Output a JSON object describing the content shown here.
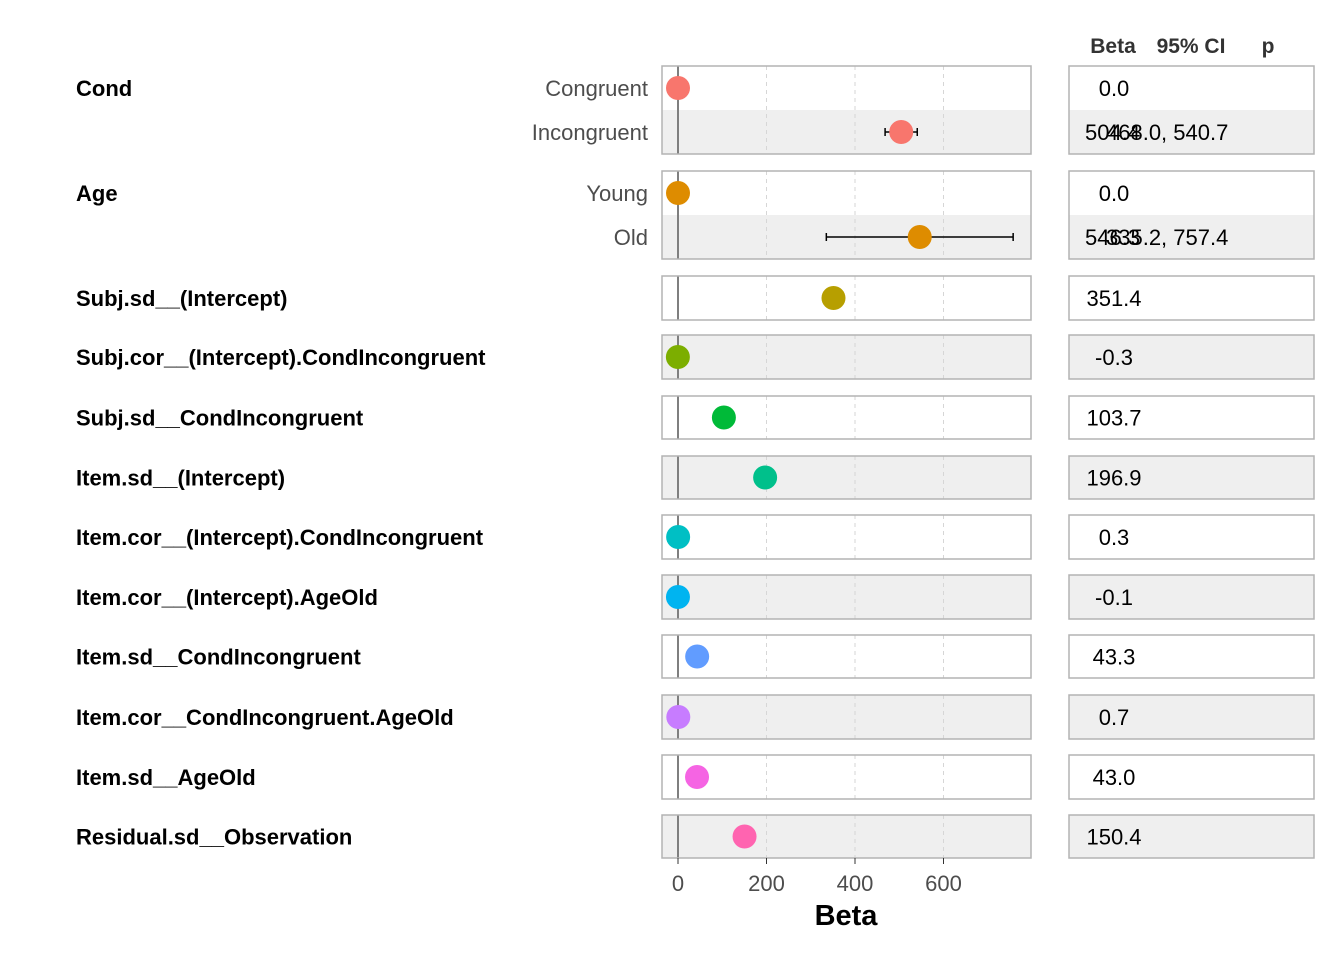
{
  "chart_data": {
    "type": "scatter",
    "xlabel": "Beta",
    "ylabel": "",
    "xlim": [
      -40,
      800
    ],
    "x_ticks": [
      "0",
      "200",
      "400",
      "600"
    ],
    "x_tick_values": [
      0,
      200,
      400,
      600
    ],
    "grid": true,
    "reference_line": 0,
    "table_headers": [
      "Beta",
      "95% CI",
      "p"
    ],
    "groups": [
      {
        "term": "Cond",
        "rows": [
          {
            "level": "Congruent",
            "estimate": 0,
            "beta_text": "0.0",
            "ci_text": "",
            "p": "",
            "color": "#F8766D"
          },
          {
            "level": "Incongruent",
            "estimate": 504.4,
            "ci": [
              468.0,
              540.7
            ],
            "beta_text": "504.4",
            "ci_text": "468.0, 540.7",
            "p": "",
            "color": "#F8766D"
          }
        ]
      },
      {
        "term": "Age",
        "rows": [
          {
            "level": "Young",
            "estimate": 0,
            "beta_text": "0.0",
            "ci_text": "",
            "p": "",
            "color": "#DE8C00"
          },
          {
            "level": "Old",
            "estimate": 546.3,
            "ci": [
              335.2,
              757.4
            ],
            "beta_text": "546.3",
            "ci_text": "335.2, 757.4",
            "p": "",
            "color": "#DE8C00"
          }
        ]
      },
      {
        "term": "Subj.sd__(Intercept)",
        "rows": [
          {
            "level": "",
            "estimate": 351.4,
            "beta_text": "351.4",
            "ci_text": "",
            "p": "",
            "color": "#B79F00"
          }
        ]
      },
      {
        "term": "Subj.cor__(Intercept).CondIncongruent",
        "rows": [
          {
            "level": "",
            "estimate": -0.3,
            "beta_text": "-0.3",
            "ci_text": "",
            "p": "",
            "color": "#7CAE00"
          }
        ]
      },
      {
        "term": "Subj.sd__CondIncongruent",
        "rows": [
          {
            "level": "",
            "estimate": 103.7,
            "beta_text": "103.7",
            "ci_text": "",
            "p": "",
            "color": "#00BA38"
          }
        ]
      },
      {
        "term": "Item.sd__(Intercept)",
        "rows": [
          {
            "level": "",
            "estimate": 196.9,
            "beta_text": "196.9",
            "ci_text": "",
            "p": "",
            "color": "#00C08B"
          }
        ]
      },
      {
        "term": "Item.cor__(Intercept).CondIncongruent",
        "rows": [
          {
            "level": "",
            "estimate": 0.3,
            "beta_text": "0.3",
            "ci_text": "",
            "p": "",
            "color": "#00BFC4"
          }
        ]
      },
      {
        "term": "Item.cor__(Intercept).AgeOld",
        "rows": [
          {
            "level": "",
            "estimate": -0.1,
            "beta_text": "-0.1",
            "ci_text": "",
            "p": "",
            "color": "#00B4F0"
          }
        ]
      },
      {
        "term": "Item.sd__CondIncongruent",
        "rows": [
          {
            "level": "",
            "estimate": 43.3,
            "beta_text": "43.3",
            "ci_text": "",
            "p": "",
            "color": "#619CFF"
          }
        ]
      },
      {
        "term": "Item.cor__CondIncongruent.AgeOld",
        "rows": [
          {
            "level": "",
            "estimate": 0.7,
            "beta_text": "0.7",
            "ci_text": "",
            "p": "",
            "color": "#C77CFF"
          }
        ]
      },
      {
        "term": "Item.sd__AgeOld",
        "rows": [
          {
            "level": "",
            "estimate": 43.0,
            "beta_text": "43.0",
            "ci_text": "",
            "p": "",
            "color": "#F564E3"
          }
        ]
      },
      {
        "term": "Residual.sd__Observation",
        "rows": [
          {
            "level": "",
            "estimate": 150.4,
            "beta_text": "150.4",
            "ci_text": "",
            "p": "",
            "color": "#FF64B0"
          }
        ]
      }
    ]
  }
}
